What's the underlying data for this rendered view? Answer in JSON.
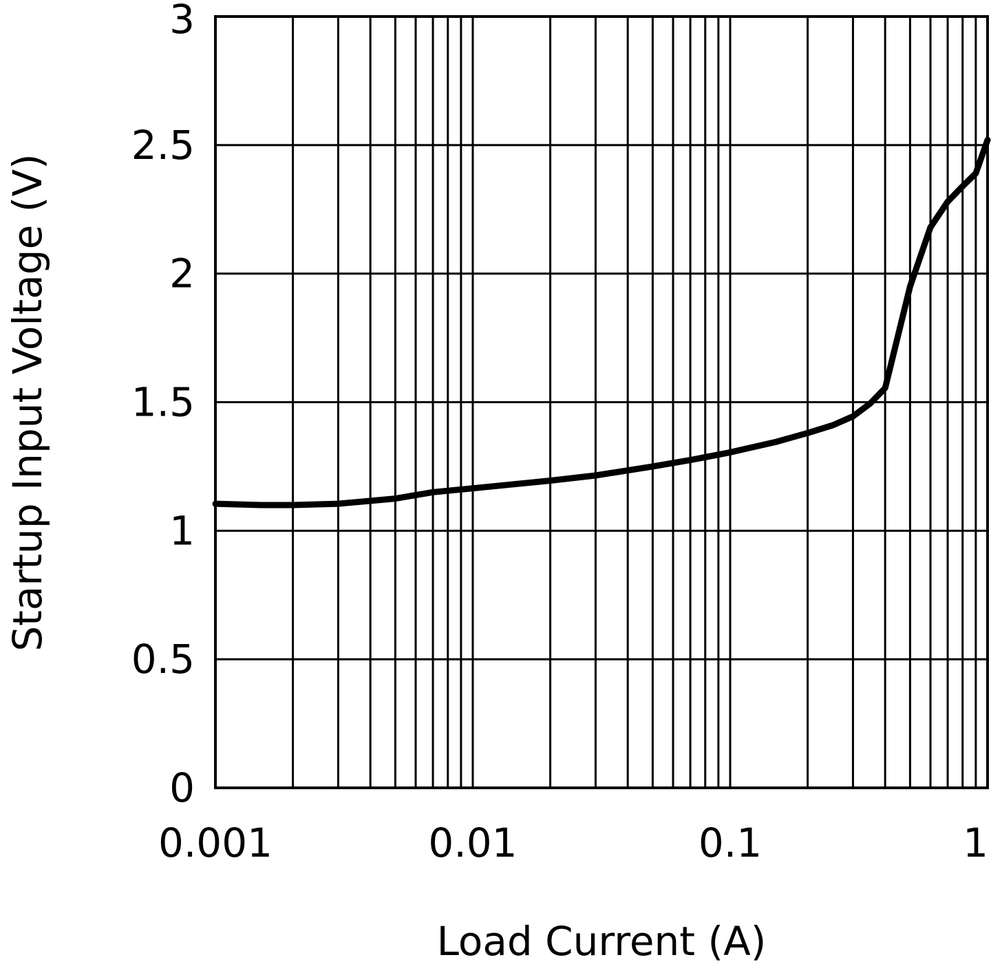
{
  "chart_data": {
    "type": "line",
    "title": "",
    "xlabel": "Load Current (A)",
    "ylabel": "Startup Input Voltage (V)",
    "x_scale": "log",
    "xlim": [
      0.001,
      1
    ],
    "ylim": [
      0,
      3
    ],
    "grid": true,
    "legend": "none",
    "x_ticks": [
      {
        "value": 0.001,
        "label": "0.001"
      },
      {
        "value": 0.01,
        "label": "0.01"
      },
      {
        "value": 0.1,
        "label": "0.1"
      },
      {
        "value": 1,
        "label": "1"
      }
    ],
    "y_ticks": [
      {
        "value": 0,
        "label": "0"
      },
      {
        "value": 0.5,
        "label": "0.5"
      },
      {
        "value": 1,
        "label": "1"
      },
      {
        "value": 1.5,
        "label": "1.5"
      },
      {
        "value": 2,
        "label": "2"
      },
      {
        "value": 2.5,
        "label": "2.5"
      },
      {
        "value": 3,
        "label": "3"
      }
    ],
    "series": [
      {
        "color": "#000000",
        "x": [
          0.001,
          0.0015,
          0.002,
          0.003,
          0.005,
          0.007,
          0.01,
          0.02,
          0.03,
          0.05,
          0.07,
          0.1,
          0.15,
          0.2,
          0.25,
          0.3,
          0.35,
          0.4,
          0.5,
          0.6,
          0.7,
          0.8,
          0.9,
          1.0
        ],
        "y": [
          1.105,
          1.1,
          1.1,
          1.105,
          1.125,
          1.15,
          1.165,
          1.195,
          1.215,
          1.25,
          1.275,
          1.305,
          1.345,
          1.38,
          1.41,
          1.445,
          1.495,
          1.555,
          1.95,
          2.18,
          2.28,
          2.34,
          2.39,
          2.52
        ]
      }
    ]
  }
}
